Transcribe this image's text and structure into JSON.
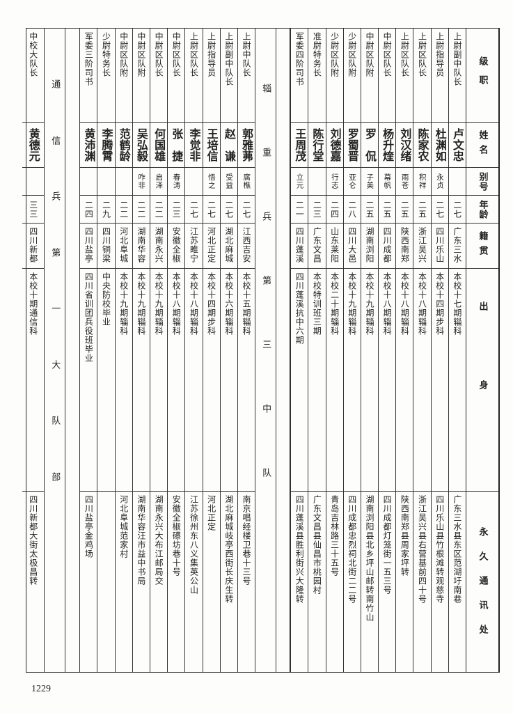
{
  "header": {
    "rank": "级职",
    "name": "姓名",
    "alias": "别号",
    "age": "年龄",
    "native": "籍贯",
    "origin": "出身",
    "address": "永久通讯处"
  },
  "groups": [
    {
      "label": "",
      "records": [
        {
          "rank": "上尉副中队长",
          "name": "卢文忠",
          "alias": "",
          "age": "二七",
          "native": "广东三水",
          "origin": "本校十七期辎科",
          "address": "广东三水县东区范湖圩南巷"
        },
        {
          "rank": "上尉指导员",
          "name": "杜渊如",
          "alias": "永贞",
          "age": "二七",
          "native": "四川乐山",
          "origin": "本校十四期步科",
          "address": "四川乐山县竹根滩转观慈寺"
        },
        {
          "rank": "上尉区队长",
          "name": "陈家农",
          "alias": "积祥",
          "age": "二五",
          "native": "浙江吴兴",
          "origin": "本校十八期辎科",
          "address": "浙江吴兴县右营基前四十号"
        },
        {
          "rank": "上尉区队长",
          "name": "刘汉绪",
          "alias": "雨苍",
          "age": "二五",
          "native": "陕西南郑",
          "origin": "本校十八期辎科",
          "address": "陕西南郑县周家坪转"
        },
        {
          "rank": "中尉区队长",
          "name": "杨升煃",
          "alias": "幕帆",
          "age": "二五",
          "native": "四川成都",
          "origin": "本校十八期辎科",
          "address": "四川成都灯笼街一五三号"
        },
        {
          "rank": "中尉区队附",
          "name": "罗　侃",
          "alias": "子美",
          "age": "二五",
          "native": "湖南浏阳",
          "origin": "本校十九期辎科",
          "address": "湖南浏阳县北乡坪山邮转南竹山"
        },
        {
          "rank": "少尉区队附",
          "name": "罗蜀晋",
          "alias": "亚仑",
          "age": "二八",
          "native": "四川大邑",
          "origin": "本校十九期辎科",
          "address": "四川成都忠烈祠北街二二号"
        },
        {
          "rank": "少尉区队附",
          "name": "刘德嘉",
          "alias": "行志",
          "age": "二四",
          "native": "山东莱阳",
          "origin": "本校二十期辎科",
          "address": "青岛吉林路三十五号"
        },
        {
          "rank": "准尉特务长",
          "name": "陈行堂",
          "alias": "",
          "age": "二三",
          "native": "广东文昌",
          "origin": "本校特训班三期",
          "address": "广东文昌县仙昌市桃园村"
        },
        {
          "rank": "军委四阶司书",
          "name": "王周茂",
          "alias": "立元",
          "age": "二一",
          "native": "四川蓬溪",
          "origin": "四川蓬溪抗中六期",
          "address": "四川蓬溪县胜利街兴大隆转"
        }
      ]
    },
    {
      "label": "辎重兵第三中队",
      "records": [
        {
          "rank": "上尉中队长",
          "name": "郭雅茀",
          "alias": "腐樵",
          "age": "二七",
          "native": "江西吉安",
          "origin": "本校十五期辎科",
          "address": "南京唱经楼卫巷十三号"
        },
        {
          "rank": "上尉副中队长",
          "name": "赵　谦",
          "alias": "受益",
          "age": "二七",
          "native": "湖北麻城",
          "origin": "本校十六期辎科",
          "address": "湖北麻城岐亭西街长庆生转"
        },
        {
          "rank": "上尉指导员",
          "name": "王培信",
          "alias": "悟之",
          "age": "二七",
          "native": "河北正定",
          "origin": "本校十四期步科",
          "address": "河北正定"
        },
        {
          "rank": "上尉区队长",
          "name": "李觉非",
          "alias": "",
          "age": "二七",
          "native": "江苏睢宁",
          "origin": "本校十八期辎科",
          "address": "江苏徐州东八义集英公山"
        },
        {
          "rank": "中尉区队长",
          "name": "张　捷",
          "alias": "春涛",
          "age": "二三",
          "native": "安徽全椒",
          "origin": "本校十八期辎科",
          "address": "安徽全椒礤坊巷十号"
        },
        {
          "rank": "中尉区队长",
          "name": "何国雄",
          "alias": "启泽",
          "age": "二二",
          "native": "湖南永兴",
          "origin": "本校十九期辎科",
          "address": "湖南永兴大布江邮局交"
        },
        {
          "rank": "中尉区队附",
          "name": "吴弘毅",
          "alias": "咋非",
          "age": "二二",
          "native": "湖南华容",
          "origin": "本校十九期辎科",
          "address": "湖南华容汪市益中书局"
        },
        {
          "rank": "中尉区队附",
          "name": "范鹤龄",
          "alias": "",
          "age": "二二",
          "native": "河北阜城",
          "origin": "本校十九期辎科",
          "address": "河北阜城范家村"
        },
        {
          "rank": "少尉特务长",
          "name": "李腾霄",
          "alias": "",
          "age": "二九",
          "native": "四川铜梁",
          "origin": "中央防校毕业",
          "address": ""
        },
        {
          "rank": "军委三阶司书",
          "name": "黄沛渊",
          "alias": "",
          "age": "二四",
          "native": "四川盐亭",
          "origin": "四川省训团兵役班毕业",
          "address": "四川盐亭金鸡场"
        }
      ]
    },
    {
      "label": "通信兵第一大队部",
      "records": [
        {
          "rank": "中校大队长",
          "name": "黄德元",
          "alias": "",
          "age": "三三",
          "native": "四川新都",
          "origin": "本校十期通信科",
          "address": "四川新都大街太极昌转"
        }
      ]
    }
  ],
  "page_number": "1229"
}
